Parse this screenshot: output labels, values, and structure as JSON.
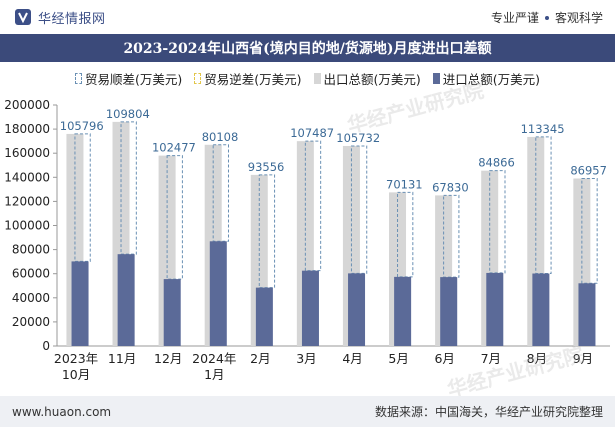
{
  "header": {
    "brand": "华经情报网",
    "tags": [
      "专业严谨",
      "客观科学"
    ]
  },
  "title": "2023-2024年山西省(境内目的地/货源地)月度进出口差额",
  "legend": {
    "surplus": "贸易顺差(万美元)",
    "deficit": "贸易逆差(万美元)",
    "export": "出口总额(万美元)",
    "import": "进口总额(万美元)"
  },
  "colors": {
    "export": "#d6d6d6",
    "import": "#5b6a98",
    "surplus_border": "#6a90b4",
    "deficit_border": "#e2c64a",
    "label": "#3c6a96",
    "title_bg": "#3b4a7a"
  },
  "footer": {
    "url": "www.huaon.com",
    "source": "数据来源：中国海关，华经产业研究院整理"
  },
  "watermark": "华经产业研究院",
  "chart_data": {
    "type": "bar",
    "categories": [
      "2023年\n10月",
      "11月",
      "12月",
      "2024年\n1月",
      "2月",
      "3月",
      "4月",
      "5月",
      "6月",
      "7月",
      "8月",
      "9月"
    ],
    "series": [
      {
        "name": "出口总额(万美元)",
        "values": [
          176000,
          186000,
          158000,
          167000,
          142000,
          170000,
          166000,
          127500,
          125000,
          145500,
          173500,
          139000
        ]
      },
      {
        "name": "进口总额(万美元)",
        "values": [
          70204,
          76196,
          55523,
          86892,
          48444,
          62513,
          60268,
          57369,
          57170,
          60634,
          60155,
          52043
        ]
      },
      {
        "name": "贸易顺差(万美元)",
        "values": [
          105796,
          109804,
          102477,
          80108,
          93556,
          107487,
          105732,
          70131,
          67830,
          84866,
          113345,
          86957
        ]
      }
    ],
    "ylim": [
      0,
      200000
    ],
    "yticks": [
      0,
      20000,
      40000,
      60000,
      80000,
      100000,
      120000,
      140000,
      160000,
      180000,
      200000
    ]
  }
}
